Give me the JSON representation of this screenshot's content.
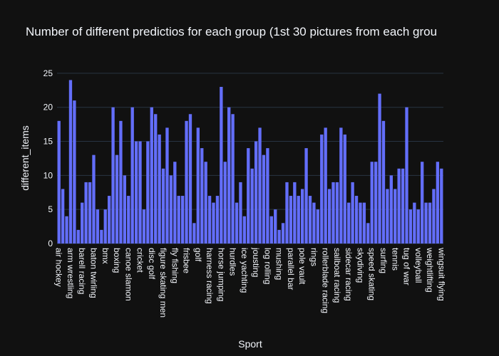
{
  "chart_data": {
    "type": "bar",
    "title": "Number of different predictios for each group (1st 30 pictures from each grou",
    "xlabel": "Sport",
    "ylabel": "different_items",
    "categories": [
      "air hockey",
      null,
      null,
      "arm wrestling",
      null,
      null,
      "barell racing",
      null,
      null,
      "baton twirling",
      null,
      null,
      "bmx",
      null,
      null,
      "boxing",
      null,
      null,
      "canoe slamon",
      null,
      null,
      "cricket",
      null,
      null,
      "disc golf",
      null,
      null,
      "figure skating men",
      null,
      null,
      "fly fishing",
      null,
      null,
      "frisbee",
      null,
      null,
      "golf",
      null,
      null,
      "harness racing",
      null,
      null,
      "horse jumping",
      null,
      null,
      "hurdles",
      null,
      null,
      "ice yachting",
      null,
      null,
      "jousting",
      null,
      null,
      "log rolling",
      null,
      null,
      "mushing",
      null,
      null,
      "parallel bar",
      null,
      null,
      "pole vault",
      null,
      null,
      "rings",
      null,
      null,
      "rollerblade racing",
      null,
      null,
      "sailboat racing",
      null,
      null,
      "sidecar racing",
      null,
      null,
      "skydiving",
      null,
      null,
      "speed skating",
      null,
      null,
      "surfing",
      null,
      null,
      "tennis",
      null,
      null,
      "tug of war",
      null,
      null,
      "volleyball",
      null,
      null,
      "weightlifting",
      null,
      null,
      "wingsuit flying"
    ],
    "values": [
      18,
      8,
      4,
      24,
      21,
      2,
      6,
      9,
      9,
      13,
      5,
      2,
      5,
      7,
      20,
      13,
      18,
      10,
      7,
      20,
      15,
      15,
      5,
      15,
      20,
      19,
      16,
      11,
      17,
      10,
      12,
      7,
      7,
      18,
      19,
      3,
      17,
      14,
      12,
      7,
      6,
      7,
      23,
      12,
      20,
      19,
      6,
      9,
      4,
      14,
      11,
      15,
      17,
      13,
      14,
      4,
      5,
      2,
      3,
      9,
      7,
      9,
      7,
      8,
      14,
      7,
      6,
      5,
      16,
      17,
      8,
      9,
      9,
      17,
      16,
      6,
      9,
      7,
      6,
      6,
      3,
      12,
      12,
      22,
      18,
      8,
      10,
      8,
      11,
      11,
      20,
      5,
      6,
      5,
      12,
      6,
      6,
      8,
      12,
      11
    ],
    "color": "#636efa",
    "ylim": [
      0,
      25.3
    ],
    "yticks": [
      0,
      5,
      10,
      15,
      20,
      25
    ],
    "grid": true
  }
}
